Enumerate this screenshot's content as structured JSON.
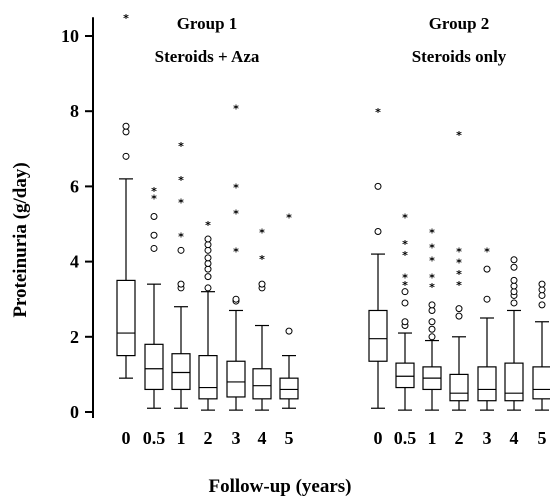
{
  "chart_data": {
    "type": "boxplot",
    "xlabel": "Follow-up (years)",
    "ylabel": "Proteinuria (g/day)",
    "ylim": [
      0,
      10.5
    ],
    "yticks": [
      0,
      2,
      4,
      6,
      8,
      10
    ],
    "grid": false,
    "groups": [
      {
        "title": "Group 1",
        "subtitle": "Steroids + Aza",
        "boxes": [
          {
            "label": "0",
            "q1": 1.5,
            "median": 2.1,
            "q3": 3.5,
            "whisker_low": 0.9,
            "whisker_high": 6.2,
            "outliers": [
              6.8,
              7.45,
              7.6
            ],
            "extremes": [
              10.5
            ]
          },
          {
            "label": "0.5",
            "q1": 0.6,
            "median": 1.15,
            "q3": 1.8,
            "whisker_low": 0.1,
            "whisker_high": 3.4,
            "outliers": [
              4.35,
              4.7,
              5.2
            ],
            "extremes": [
              5.9,
              5.7
            ]
          },
          {
            "label": "1",
            "q1": 0.6,
            "median": 1.05,
            "q3": 1.55,
            "whisker_low": 0.1,
            "whisker_high": 2.8,
            "outliers": [
              3.3,
              3.4,
              4.3
            ],
            "extremes": [
              7.1,
              6.2,
              5.6,
              4.7
            ]
          },
          {
            "label": "2",
            "q1": 0.35,
            "median": 0.65,
            "q3": 1.5,
            "whisker_low": 0.05,
            "whisker_high": 3.2,
            "outliers": [
              3.3,
              3.6,
              3.8,
              3.95,
              4.1,
              4.3,
              4.45,
              4.6
            ],
            "extremes": [
              5.0
            ]
          },
          {
            "label": "3",
            "q1": 0.4,
            "median": 0.8,
            "q3": 1.35,
            "whisker_low": 0.05,
            "whisker_high": 2.7,
            "outliers": [
              2.95,
              3.0
            ],
            "extremes": [
              8.1,
              6.0,
              5.3,
              4.3
            ]
          },
          {
            "label": "4",
            "q1": 0.35,
            "median": 0.7,
            "q3": 1.15,
            "whisker_low": 0.05,
            "whisker_high": 2.3,
            "outliers": [
              3.3,
              3.4
            ],
            "extremes": [
              4.8,
              4.1
            ]
          },
          {
            "label": "5",
            "q1": 0.35,
            "median": 0.6,
            "q3": 0.9,
            "whisker_low": 0.1,
            "whisker_high": 1.5,
            "outliers": [
              2.15
            ],
            "extremes": [
              5.2
            ]
          }
        ]
      },
      {
        "title": "Group 2",
        "subtitle": "Steroids only",
        "boxes": [
          {
            "label": "0",
            "q1": 1.35,
            "median": 1.95,
            "q3": 2.7,
            "whisker_low": 0.1,
            "whisker_high": 4.2,
            "outliers": [
              4.8,
              6.0
            ],
            "extremes": [
              8.0
            ]
          },
          {
            "label": "0.5",
            "q1": 0.65,
            "median": 0.95,
            "q3": 1.3,
            "whisker_low": 0.05,
            "whisker_high": 2.1,
            "outliers": [
              2.3,
              2.4,
              2.9,
              3.2
            ],
            "extremes": [
              5.2,
              4.5,
              4.2,
              3.6,
              3.4
            ]
          },
          {
            "label": "1",
            "q1": 0.6,
            "median": 0.9,
            "q3": 1.2,
            "whisker_low": 0.05,
            "whisker_high": 1.9,
            "outliers": [
              2.0,
              2.2,
              2.4,
              2.7,
              2.85
            ],
            "extremes": [
              4.8,
              4.4,
              4.05,
              3.6,
              3.35
            ]
          },
          {
            "label": "2",
            "q1": 0.3,
            "median": 0.5,
            "q3": 1.0,
            "whisker_low": 0.05,
            "whisker_high": 2.0,
            "outliers": [
              2.55,
              2.75
            ],
            "extremes": [
              7.4,
              4.3,
              4.0,
              3.7,
              3.4
            ]
          },
          {
            "label": "3",
            "q1": 0.3,
            "median": 0.6,
            "q3": 1.2,
            "whisker_low": 0.05,
            "whisker_high": 2.5,
            "outliers": [
              3.0,
              3.8
            ],
            "extremes": [
              4.3
            ]
          },
          {
            "label": "4",
            "q1": 0.3,
            "median": 0.5,
            "q3": 1.3,
            "whisker_low": 0.05,
            "whisker_high": 2.7,
            "outliers": [
              2.9,
              3.1,
              3.2,
              3.35,
              3.5,
              3.85,
              4.05
            ],
            "extremes": []
          },
          {
            "label": "5",
            "q1": 0.35,
            "median": 0.6,
            "q3": 1.2,
            "whisker_low": 0.05,
            "whisker_high": 2.4,
            "outliers": [
              2.85,
              3.1,
              3.25,
              3.4
            ],
            "extremes": []
          }
        ]
      }
    ]
  }
}
